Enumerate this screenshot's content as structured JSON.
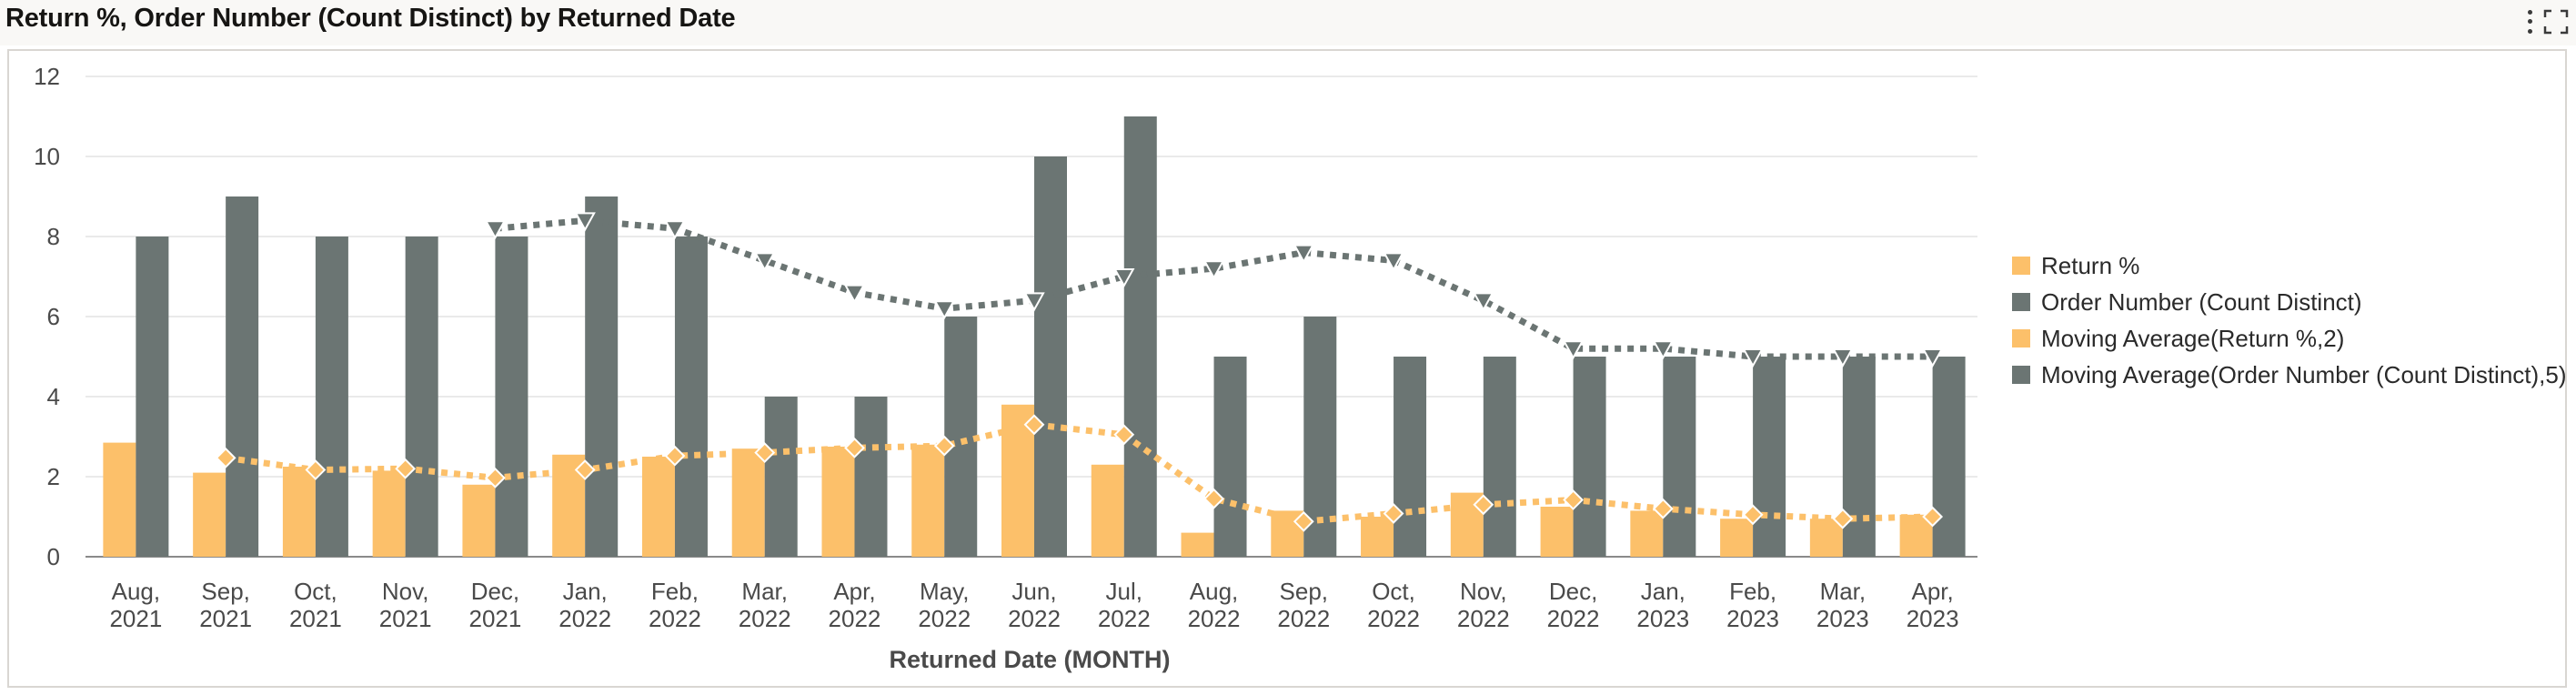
{
  "header": {
    "title": "Return %, Order Number (Count Distinct) by Returned Date",
    "menu_icon": "kebab-menu-icon",
    "maximize_icon": "maximize-icon"
  },
  "colors": {
    "return_pct": "#fcc06a",
    "order_number": "#6b7573",
    "moving_avg_return": "#fcc06a",
    "moving_avg_order": "#6b7573"
  },
  "chart_data": {
    "type": "bar",
    "xlabel": "Returned Date (MONTH)",
    "ylabel": "",
    "ylim": [
      0,
      12
    ],
    "yticks": [
      0,
      2,
      4,
      6,
      8,
      10,
      12
    ],
    "grid": true,
    "legend_position": "right",
    "categories": [
      [
        "Aug,",
        "2021"
      ],
      [
        "Sep,",
        "2021"
      ],
      [
        "Oct,",
        "2021"
      ],
      [
        "Nov,",
        "2021"
      ],
      [
        "Dec,",
        "2021"
      ],
      [
        "Jan,",
        "2022"
      ],
      [
        "Feb,",
        "2022"
      ],
      [
        "Mar,",
        "2022"
      ],
      [
        "Apr,",
        "2022"
      ],
      [
        "May,",
        "2022"
      ],
      [
        "Jun,",
        "2022"
      ],
      [
        "Jul,",
        "2022"
      ],
      [
        "Aug,",
        "2022"
      ],
      [
        "Sep,",
        "2022"
      ],
      [
        "Oct,",
        "2022"
      ],
      [
        "Nov,",
        "2022"
      ],
      [
        "Dec,",
        "2022"
      ],
      [
        "Jan,",
        "2023"
      ],
      [
        "Feb,",
        "2023"
      ],
      [
        "Mar,",
        "2023"
      ],
      [
        "Apr,",
        "2023"
      ]
    ],
    "series": [
      {
        "name": "Return %",
        "kind": "bar",
        "values": [
          2.85,
          2.1,
          2.25,
          2.15,
          1.8,
          2.55,
          2.5,
          2.7,
          2.75,
          2.8,
          3.8,
          2.3,
          0.6,
          1.15,
          1.0,
          1.6,
          1.25,
          1.15,
          0.95,
          0.95,
          1.05
        ]
      },
      {
        "name": "Order Number (Count Distinct)",
        "kind": "bar",
        "values": [
          8,
          9,
          8,
          8,
          8,
          9,
          8,
          4,
          4,
          6,
          10,
          11,
          5,
          6,
          5,
          5,
          5,
          5,
          5,
          5,
          5
        ]
      },
      {
        "name": "Moving Average(Return %,2)",
        "kind": "line",
        "marker": "diamond",
        "values": [
          null,
          2.47,
          2.17,
          2.2,
          1.97,
          2.17,
          2.52,
          2.6,
          2.72,
          2.77,
          3.3,
          3.05,
          1.45,
          0.88,
          1.08,
          1.3,
          1.42,
          1.2,
          1.05,
          0.95,
          1.0
        ]
      },
      {
        "name": "Moving Average(Order Number (Count Distinct)),5",
        "kind": "line",
        "marker": "triangle-down",
        "values": [
          null,
          null,
          null,
          null,
          8.2,
          8.4,
          8.2,
          7.4,
          6.6,
          6.2,
          6.4,
          7.0,
          7.2,
          7.6,
          7.4,
          6.4,
          5.2,
          5.2,
          5.0,
          5.0,
          5.0
        ]
      }
    ],
    "legend": [
      "Return %",
      "Order Number (Count Distinct)",
      "Moving Average(Return %,2)",
      "Moving Average(Order Number (Count Distinct),5)"
    ]
  }
}
